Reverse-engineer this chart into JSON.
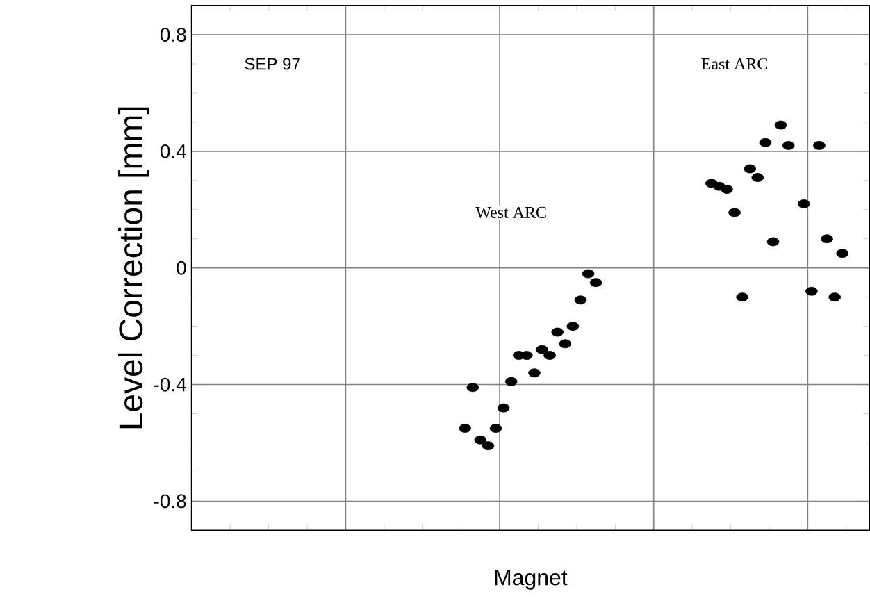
{
  "chart_data": {
    "type": "scatter",
    "categories": [
      null,
      null,
      null,
      null,
      null,
      null,
      null,
      null,
      null,
      null,
      null,
      null,
      null,
      null,
      null,
      null,
      null,
      null,
      null,
      null,
      null,
      null,
      null,
      null,
      null,
      null,
      null,
      null,
      null,
      null,
      null,
      null,
      null,
      null,
      null,
      null,
      null,
      null,
      null,
      null,
      null,
      null,
      null,
      null,
      null,
      null,
      null,
      null,
      null,
      null,
      null,
      null,
      null,
      null,
      null,
      null,
      null,
      null,
      null,
      null,
      null,
      null,
      null,
      null,
      null,
      null,
      null,
      null,
      null,
      null,
      null,
      null,
      null,
      null,
      null,
      null,
      null,
      null,
      null,
      null,
      null,
      null,
      null,
      null,
      null,
      null,
      null,
      null
    ],
    "series": [
      {
        "color": "#000000",
        "values": [
          null,
          null,
          null,
          null,
          null,
          null,
          null,
          null,
          null,
          null,
          null,
          null,
          null,
          null,
          null,
          null,
          null,
          null,
          null,
          null,
          null,
          null,
          null,
          null,
          null,
          null,
          null,
          null,
          null,
          null,
          null,
          null,
          null,
          null,
          null,
          -0.55,
          -0.41,
          -0.59,
          -0.61,
          -0.55,
          -0.48,
          -0.39,
          -0.3,
          -0.3,
          -0.36,
          -0.28,
          -0.3,
          -0.22,
          -0.26,
          -0.2,
          -0.11,
          -0.02,
          -0.05,
          null,
          null,
          null,
          null,
          null,
          null,
          null,
          null,
          null,
          null,
          null,
          null,
          null,
          null,
          0.29,
          0.28,
          0.27,
          0.19,
          -0.1,
          0.34,
          0.31,
          0.43,
          0.09,
          0.49,
          0.42,
          null,
          0.22,
          -0.08,
          0.42,
          0.1,
          -0.1,
          0.05,
          null,
          null,
          null
        ]
      }
    ],
    "xlabel": "Magnet",
    "ylabel": "Level Correction [mm]",
    "ylim": [
      -0.9,
      0.9
    ],
    "yticks": [
      -0.8,
      {
        "value": -0.7,
        "label": null
      },
      {
        "value": -0.6,
        "label": null
      },
      {
        "value": -0.5,
        "label": null
      },
      -0.4,
      {
        "value": -0.3,
        "label": null
      },
      {
        "value": -0.2,
        "label": null
      },
      {
        "value": -0.1,
        "label": null
      },
      0,
      {
        "value": 0.1,
        "label": null
      },
      {
        "value": 0.2,
        "label": null
      },
      {
        "value": 0.3,
        "label": null
      },
      0.4,
      {
        "value": 0.5,
        "label": null
      },
      {
        "value": 0.6,
        "label": null
      },
      {
        "value": 0.7,
        "label": null
      },
      0.8
    ],
    "annotations": [
      "SEP 97",
      "West ARC",
      "East ARC"
    ],
    "grid": true,
    "marker": "circle",
    "tick_labels": "y"
  }
}
